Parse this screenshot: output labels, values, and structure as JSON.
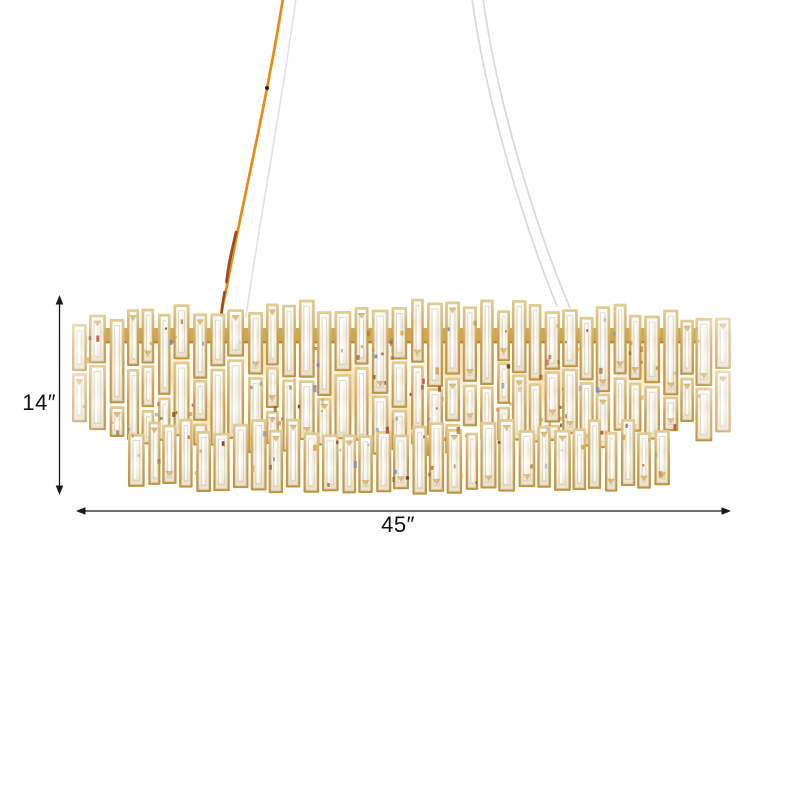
{
  "dimensions": {
    "height_label": "14″",
    "width_label": "45″"
  },
  "illustration": {
    "name": "crystal-chandelier",
    "parts": [
      "orange-power-cord",
      "gray-suspension-cable-left",
      "steel-suspension-cables-right",
      "gold-crystal-drum",
      "lower-crystal-tier"
    ]
  },
  "colors": {
    "background": "#ffffff",
    "frame_gold": "#cba14d",
    "frame_gold_light": "#e9d191",
    "frame_gold_dark": "#b58732",
    "crystal_white": "#ffffff",
    "crystal_tint": "#f0e9db",
    "crystal_edge": "#d8cbae",
    "glow_amber": "#f2b455",
    "cord_orange": "#ea8a12",
    "cord_dark_red": "#8a3410",
    "cable_gray": "#d9d9de",
    "dimension_line": "#1a1a1a"
  }
}
